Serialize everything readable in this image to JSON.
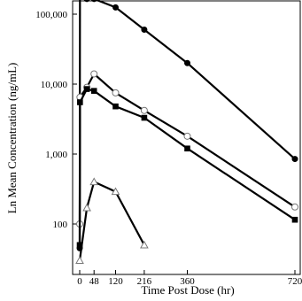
{
  "chart_data": {
    "type": "line",
    "xlabel": "Time Post Dose (hr)",
    "ylabel": "Ln Mean Concentration (ng/mL)",
    "yscale": "log",
    "xlim": [
      -8,
      730
    ],
    "ylim": [
      25,
      220000
    ],
    "x_ticks": [
      0,
      48,
      120,
      216,
      360,
      720
    ],
    "x_tick_labels": [
      "0",
      "48",
      "120",
      "216",
      "360",
      "720"
    ],
    "y_ticks": [
      100,
      1000,
      10000,
      100000
    ],
    "y_tick_labels": [
      "100",
      "1,000",
      "10,000",
      "100,000"
    ],
    "grid": false,
    "legend": "none",
    "series": [
      {
        "marker": "filled-circle",
        "x": [
          0,
          1,
          24,
          48,
          120,
          216,
          360,
          720
        ],
        "y": [
          45,
          185000,
          165000,
          165000,
          125000,
          60000,
          20000,
          850
        ]
      },
      {
        "marker": "open-circle",
        "x": [
          0,
          1,
          24,
          48,
          120,
          216,
          360,
          720
        ],
        "y": [
          100,
          6500,
          9000,
          14000,
          7500,
          4200,
          1800,
          175
        ]
      },
      {
        "marker": "filled-square",
        "x": [
          0,
          1,
          24,
          48,
          120,
          216,
          360,
          720
        ],
        "y": [
          50,
          5500,
          8500,
          8000,
          4800,
          3300,
          1200,
          115
        ]
      },
      {
        "marker": "open-triangle",
        "x": [
          0,
          24,
          48,
          120,
          216
        ],
        "y": [
          30,
          170,
          400,
          290,
          50
        ]
      }
    ]
  }
}
